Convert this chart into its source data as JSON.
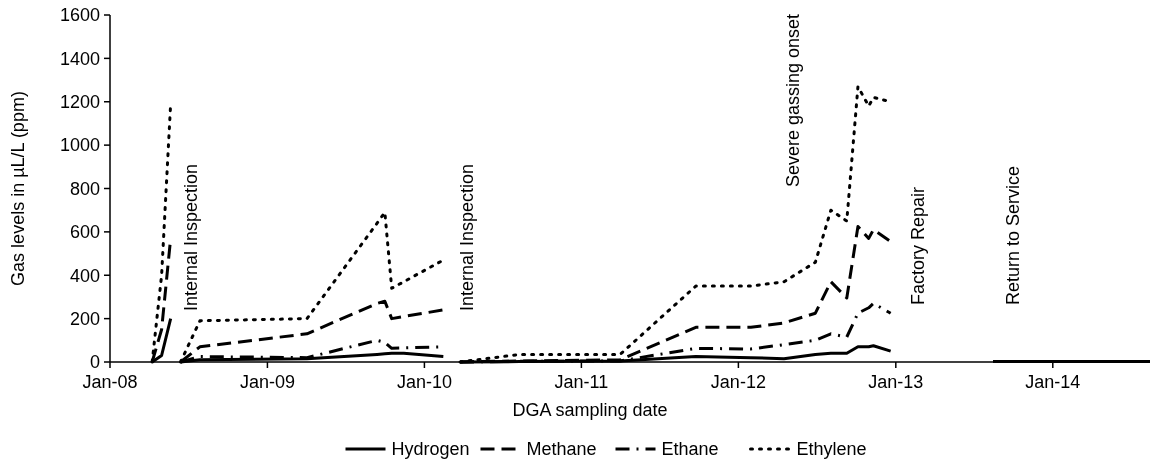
{
  "chart_data": {
    "type": "line",
    "xlabel": "DGA sampling date",
    "ylabel": "Gas levels in µL/L (ppm)",
    "x": [
      "2008-04-08",
      "2008-04-30",
      "2008-05-21",
      "2008-06-01",
      "2008-06-13",
      "2008-07-28",
      "2009-04-03",
      "2009-09-13",
      "2009-10-01",
      "2009-10-17",
      "2009-11-14",
      "2010-02-14",
      "2010-03-01",
      "2010-03-25",
      "2010-08-10",
      "2011-04-01",
      "2011-09-24",
      "2012-01-30",
      "2012-04-16",
      "2012-06-28",
      "2012-08-03",
      "2012-09-09",
      "2012-10-05",
      "2012-10-30",
      "2012-11-10",
      "2012-12-20",
      "2013-03-01",
      "2013-08-15",
      "2014-01-01",
      "2014-08-15"
    ],
    "series": [
      {
        "name": "Hydrogen",
        "color": "#000000",
        "line_style": "solid",
        "values": [
          0,
          30,
          200,
          null,
          0,
          10,
          15,
          35,
          38,
          40,
          40,
          25,
          null,
          0,
          2,
          5,
          25,
          20,
          15,
          35,
          40,
          40,
          70,
          70,
          75,
          50,
          null,
          2,
          2,
          2
        ]
      },
      {
        "name": "Methane",
        "color": "#000000",
        "line_style": "dashed",
        "values": [
          0,
          150,
          570,
          null,
          0,
          70,
          130,
          270,
          280,
          200,
          210,
          240,
          null,
          0,
          5,
          10,
          160,
          160,
          180,
          225,
          370,
          295,
          625,
          570,
          610,
          555,
          null,
          null,
          null,
          null
        ]
      },
      {
        "name": "Ethane",
        "color": "#000000",
        "line_style": "dashdot",
        "values": [
          null,
          null,
          null,
          null,
          0,
          25,
          20,
          100,
          90,
          63,
          65,
          70,
          null,
          0,
          3,
          5,
          63,
          60,
          80,
          100,
          130,
          115,
          225,
          250,
          270,
          225,
          null,
          null,
          null,
          null
        ]
      },
      {
        "name": "Ethylene",
        "color": "#000000",
        "line_style": "dotted",
        "values": [
          0,
          400,
          1190,
          null,
          0,
          190,
          200,
          640,
          690,
          340,
          370,
          470,
          null,
          0,
          35,
          35,
          350,
          350,
          370,
          460,
          700,
          650,
          1270,
          1180,
          1220,
          1200,
          null,
          null,
          null,
          null
        ]
      }
    ],
    "xlim": [
      "2008-01-01",
      "2014-08-15"
    ],
    "xticks": [
      {
        "value": "2008-01-01",
        "label": "Jan-08"
      },
      {
        "value": "2009-01-01",
        "label": "Jan-09"
      },
      {
        "value": "2010-01-01",
        "label": "Jan-10"
      },
      {
        "value": "2011-01-01",
        "label": "Jan-11"
      },
      {
        "value": "2012-01-01",
        "label": "Jan-12"
      },
      {
        "value": "2013-01-01",
        "label": "Jan-13"
      },
      {
        "value": "2014-01-01",
        "label": "Jan-14"
      }
    ],
    "ylim": [
      0,
      1600
    ],
    "yticks": [
      0,
      200,
      400,
      600,
      800,
      1000,
      1200,
      1400,
      1600
    ],
    "grid": false,
    "legend": "bottom",
    "marker": "none",
    "annotations": [
      "Internal Inspection",
      "Internal Inspection",
      "Severe gassing onset",
      "Factory Repair",
      "Return to Service"
    ]
  }
}
